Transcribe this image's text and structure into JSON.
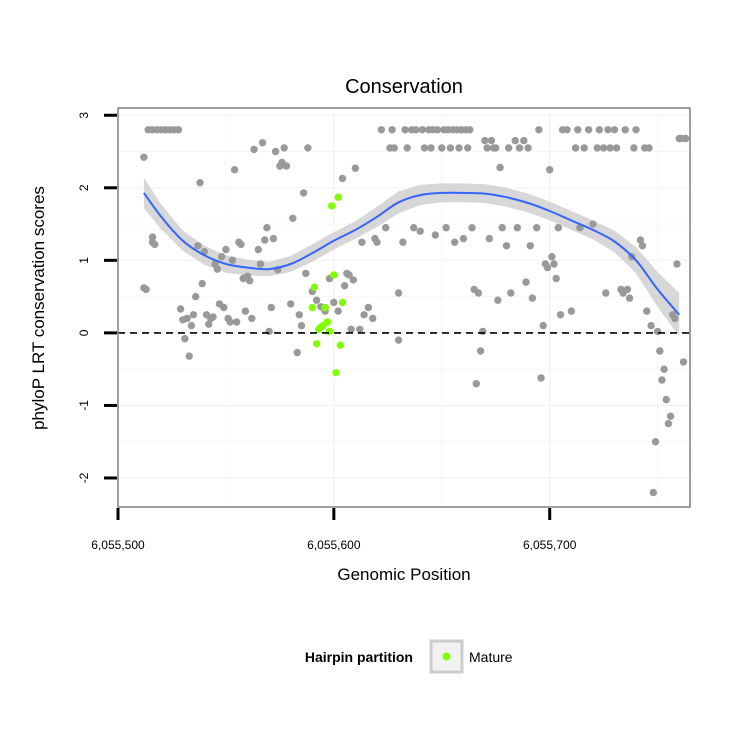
{
  "chart_data": {
    "type": "scatter",
    "title": "Conservation",
    "xlabel": "Genomic Position",
    "ylabel": "phyloP LRT conservation scores",
    "xlim": [
      6055500,
      6055765
    ],
    "ylim": [
      -2.4,
      3.1
    ],
    "x_ticks": [
      6055500,
      6055600,
      6055700
    ],
    "x_tick_labels": [
      "6,055,500",
      "6,055,600",
      "6,055,700"
    ],
    "y_ticks": [
      -2,
      -1,
      0,
      1,
      2,
      3
    ],
    "y_tick_labels": [
      "-2",
      "-1",
      "0",
      "1",
      "2",
      "3"
    ],
    "grid": true,
    "reference_line": {
      "y": 0,
      "style": "dashed",
      "color": "#000000"
    },
    "colors": {
      "background_points": "#999999",
      "mature_points": "#7fff00",
      "trend_line": "#3366ff",
      "confidence_band": "#d3d3d3",
      "panel_border": "#7f7f7f",
      "grid": "#f2f2f2"
    },
    "series": [
      {
        "key": "other",
        "color": "#999999",
        "points": [
          [
            6055512,
            0.62
          ],
          [
            6055513,
            0.6
          ],
          [
            6055512,
            2.42
          ],
          [
            6055514,
            2.8
          ],
          [
            6055516,
            2.8
          ],
          [
            6055518,
            2.8
          ],
          [
            6055520,
            2.8
          ],
          [
            6055522,
            2.8
          ],
          [
            6055524,
            2.8
          ],
          [
            6055526,
            2.8
          ],
          [
            6055528,
            2.8
          ],
          [
            6055516,
            1.25
          ],
          [
            6055517,
            1.22
          ],
          [
            6055516,
            1.32
          ],
          [
            6055529,
            0.33
          ],
          [
            6055530,
            0.18
          ],
          [
            6055531,
            -0.08
          ],
          [
            6055532,
            0.2
          ],
          [
            6055533,
            -0.32
          ],
          [
            6055534,
            0.1
          ],
          [
            6055535,
            0.25
          ],
          [
            6055536,
            0.5
          ],
          [
            6055537,
            1.2
          ],
          [
            6055538,
            2.07
          ],
          [
            6055539,
            0.68
          ],
          [
            6055540,
            1.12
          ],
          [
            6055541,
            0.25
          ],
          [
            6055542,
            0.12
          ],
          [
            6055543,
            0.2
          ],
          [
            6055544,
            0.22
          ],
          [
            6055545,
            0.95
          ],
          [
            6055546,
            0.88
          ],
          [
            6055547,
            0.4
          ],
          [
            6055548,
            1.05
          ],
          [
            6055549,
            0.35
          ],
          [
            6055550,
            1.15
          ],
          [
            6055551,
            0.2
          ],
          [
            6055552,
            0.15
          ],
          [
            6055553,
            1.0
          ],
          [
            6055554,
            2.25
          ],
          [
            6055555,
            0.15
          ],
          [
            6055556,
            1.25
          ],
          [
            6055557,
            1.22
          ],
          [
            6055558,
            0.75
          ],
          [
            6055559,
            0.3
          ],
          [
            6055560,
            0.78
          ],
          [
            6055561,
            0.72
          ],
          [
            6055562,
            0.2
          ],
          [
            6055563,
            2.53
          ],
          [
            6055565,
            1.15
          ],
          [
            6055566,
            0.95
          ],
          [
            6055567,
            2.62
          ],
          [
            6055568,
            1.28
          ],
          [
            6055569,
            1.45
          ],
          [
            6055570,
            0.02
          ],
          [
            6055571,
            0.35
          ],
          [
            6055572,
            1.3
          ],
          [
            6055573,
            2.5
          ],
          [
            6055574,
            0.87
          ],
          [
            6055575,
            2.3
          ],
          [
            6055576,
            2.35
          ],
          [
            6055577,
            2.55
          ],
          [
            6055578,
            2.3
          ],
          [
            6055580,
            0.4
          ],
          [
            6055581,
            1.58
          ],
          [
            6055583,
            -0.27
          ],
          [
            6055584,
            0.25
          ],
          [
            6055585,
            0.1
          ],
          [
            6055586,
            1.93
          ],
          [
            6055587,
            0.82
          ],
          [
            6055588,
            2.55
          ],
          [
            6055590,
            0.57
          ],
          [
            6055592,
            0.45
          ],
          [
            6055594,
            0.36
          ],
          [
            6055596,
            0.3
          ],
          [
            6055598,
            0.75
          ],
          [
            6055600,
            0.42
          ],
          [
            6055602,
            0.3
          ],
          [
            6055604,
            2.13
          ],
          [
            6055605,
            0.65
          ],
          [
            6055606,
            0.82
          ],
          [
            6055607,
            0.8
          ],
          [
            6055608,
            0.05
          ],
          [
            6055609,
            0.73
          ],
          [
            6055610,
            2.27
          ],
          [
            6055612,
            0.05
          ],
          [
            6055613,
            1.25
          ],
          [
            6055614,
            0.25
          ],
          [
            6055616,
            0.35
          ],
          [
            6055618,
            0.2
          ],
          [
            6055619,
            1.3
          ],
          [
            6055620,
            1.25
          ],
          [
            6055622,
            2.8
          ],
          [
            6055624,
            1.45
          ],
          [
            6055626,
            2.55
          ],
          [
            6055627,
            2.8
          ],
          [
            6055628,
            2.55
          ],
          [
            6055630,
            -0.1
          ],
          [
            6055630,
            0.55
          ],
          [
            6055632,
            1.25
          ],
          [
            6055633,
            2.8
          ],
          [
            6055634,
            2.55
          ],
          [
            6055636,
            2.8
          ],
          [
            6055637,
            1.45
          ],
          [
            6055638,
            2.8
          ],
          [
            6055640,
            1.4
          ],
          [
            6055641,
            2.8
          ],
          [
            6055642,
            2.55
          ],
          [
            6055644,
            2.8
          ],
          [
            6055645,
            2.55
          ],
          [
            6055646,
            2.8
          ],
          [
            6055647,
            1.35
          ],
          [
            6055648,
            2.8
          ],
          [
            6055650,
            2.55
          ],
          [
            6055651,
            2.8
          ],
          [
            6055652,
            1.45
          ],
          [
            6055653,
            2.8
          ],
          [
            6055654,
            2.55
          ],
          [
            6055655,
            2.8
          ],
          [
            6055656,
            1.25
          ],
          [
            6055657,
            2.8
          ],
          [
            6055658,
            2.55
          ],
          [
            6055659,
            2.8
          ],
          [
            6055660,
            1.3
          ],
          [
            6055661,
            2.8
          ],
          [
            6055662,
            2.55
          ],
          [
            6055663,
            2.8
          ],
          [
            6055664,
            1.45
          ],
          [
            6055665,
            0.6
          ],
          [
            6055666,
            -0.7
          ],
          [
            6055667,
            0.55
          ],
          [
            6055668,
            -0.25
          ],
          [
            6055669,
            0.02
          ],
          [
            6055670,
            2.65
          ],
          [
            6055671,
            2.55
          ],
          [
            6055672,
            1.3
          ],
          [
            6055673,
            2.65
          ],
          [
            6055674,
            2.55
          ],
          [
            6055675,
            2.55
          ],
          [
            6055676,
            0.45
          ],
          [
            6055677,
            2.28
          ],
          [
            6055678,
            1.45
          ],
          [
            6055680,
            1.2
          ],
          [
            6055681,
            2.55
          ],
          [
            6055682,
            0.55
          ],
          [
            6055684,
            2.65
          ],
          [
            6055685,
            1.45
          ],
          [
            6055686,
            2.55
          ],
          [
            6055688,
            2.65
          ],
          [
            6055689,
            0.7
          ],
          [
            6055690,
            2.55
          ],
          [
            6055691,
            1.2
          ],
          [
            6055692,
            0.48
          ],
          [
            6055694,
            1.45
          ],
          [
            6055695,
            2.8
          ],
          [
            6055696,
            -0.62
          ],
          [
            6055697,
            0.1
          ],
          [
            6055698,
            0.95
          ],
          [
            6055699,
            0.9
          ],
          [
            6055700,
            2.25
          ],
          [
            6055701,
            1.05
          ],
          [
            6055702,
            0.95
          ],
          [
            6055703,
            0.75
          ],
          [
            6055704,
            1.45
          ],
          [
            6055705,
            0.25
          ],
          [
            6055706,
            2.8
          ],
          [
            6055708,
            2.8
          ],
          [
            6055710,
            0.3
          ],
          [
            6055712,
            2.55
          ],
          [
            6055713,
            2.8
          ],
          [
            6055714,
            1.45
          ],
          [
            6055716,
            2.55
          ],
          [
            6055718,
            2.8
          ],
          [
            6055720,
            1.5
          ],
          [
            6055722,
            2.55
          ],
          [
            6055723,
            2.8
          ],
          [
            6055725,
            2.55
          ],
          [
            6055726,
            0.55
          ],
          [
            6055727,
            2.8
          ],
          [
            6055728,
            2.55
          ],
          [
            6055730,
            2.8
          ],
          [
            6055731,
            2.55
          ],
          [
            6055733,
            0.6
          ],
          [
            6055734,
            0.55
          ],
          [
            6055735,
            2.8
          ],
          [
            6055736,
            0.6
          ],
          [
            6055737,
            0.48
          ],
          [
            6055738,
            1.05
          ],
          [
            6055739,
            2.55
          ],
          [
            6055740,
            2.8
          ],
          [
            6055742,
            1.28
          ],
          [
            6055743,
            1.2
          ],
          [
            6055744,
            2.55
          ],
          [
            6055745,
            0.3
          ],
          [
            6055746,
            2.55
          ],
          [
            6055747,
            0.1
          ],
          [
            6055748,
            -2.2
          ],
          [
            6055749,
            -1.5
          ],
          [
            6055750,
            0.02
          ],
          [
            6055751,
            -0.25
          ],
          [
            6055752,
            -0.65
          ],
          [
            6055753,
            -0.5
          ],
          [
            6055754,
            -0.92
          ],
          [
            6055755,
            -1.25
          ],
          [
            6055756,
            -1.15
          ],
          [
            6055757,
            0.25
          ],
          [
            6055758,
            0.2
          ],
          [
            6055759,
            0.95
          ],
          [
            6055760,
            2.68
          ],
          [
            6055761,
            2.68
          ],
          [
            6055762,
            -0.4
          ],
          [
            6055763,
            2.68
          ]
        ]
      },
      {
        "key": "mature",
        "name": "Mature",
        "color": "#7fff00",
        "points": [
          [
            6055590,
            0.35
          ],
          [
            6055591,
            0.63
          ],
          [
            6055592,
            -0.15
          ],
          [
            6055593,
            0.05
          ],
          [
            6055594,
            0.08
          ],
          [
            6055595,
            0.1
          ],
          [
            6055596,
            0.35
          ],
          [
            6055597,
            0.15
          ],
          [
            6055598,
            0.02
          ],
          [
            6055599,
            1.75
          ],
          [
            6055600,
            0.8
          ],
          [
            6055601,
            -0.55
          ],
          [
            6055602,
            1.87
          ],
          [
            6055603,
            -0.17
          ],
          [
            6055604,
            0.42
          ]
        ]
      }
    ],
    "trend": {
      "method": "smooth",
      "x": [
        6055512,
        6055520,
        6055530,
        6055540,
        6055550,
        6055560,
        6055570,
        6055580,
        6055590,
        6055600,
        6055610,
        6055620,
        6055630,
        6055640,
        6055650,
        6055660,
        6055670,
        6055680,
        6055690,
        6055700,
        6055710,
        6055720,
        6055730,
        6055740,
        6055750,
        6055760
      ],
      "y": [
        1.93,
        1.6,
        1.27,
        1.07,
        0.95,
        0.9,
        0.88,
        0.95,
        1.1,
        1.27,
        1.42,
        1.6,
        1.8,
        1.9,
        1.93,
        1.93,
        1.92,
        1.87,
        1.79,
        1.68,
        1.55,
        1.42,
        1.26,
        1.0,
        0.6,
        0.25
      ],
      "lower": [
        1.72,
        1.43,
        1.13,
        0.94,
        0.83,
        0.79,
        0.78,
        0.84,
        0.98,
        1.15,
        1.3,
        1.46,
        1.65,
        1.76,
        1.8,
        1.8,
        1.79,
        1.74,
        1.66,
        1.55,
        1.42,
        1.29,
        1.11,
        0.82,
        0.36,
        -0.05
      ],
      "upper": [
        2.14,
        1.77,
        1.41,
        1.2,
        1.07,
        1.01,
        0.98,
        1.06,
        1.22,
        1.39,
        1.54,
        1.74,
        1.95,
        2.04,
        2.06,
        2.06,
        2.05,
        2.0,
        1.92,
        1.81,
        1.68,
        1.55,
        1.41,
        1.18,
        0.84,
        0.55
      ]
    },
    "legend": {
      "title": "Hairpin partition",
      "placement": "bottom",
      "entries": [
        {
          "label": "Mature",
          "color": "#7fff00"
        }
      ]
    }
  }
}
